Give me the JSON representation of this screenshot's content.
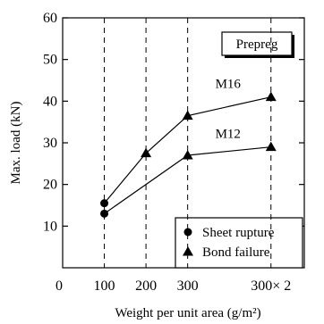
{
  "chart_data": {
    "type": "line",
    "ylabel": "Max. load (kN)",
    "xlabel": "Weight per unit area (g/m²)",
    "ylim": [
      0,
      60
    ],
    "yticks": [
      10,
      20,
      30,
      40,
      50,
      60
    ],
    "xticks": [
      {
        "label": "0",
        "pos": 0
      },
      {
        "label": "100",
        "pos": 1
      },
      {
        "label": "200",
        "pos": 2
      },
      {
        "label": "300",
        "pos": 3
      },
      {
        "label": "300× 2",
        "pos": 5
      }
    ],
    "vgrid": [
      1,
      2,
      3,
      5
    ],
    "grid_style": "dashed vertical lines",
    "box_label": "Prepreg",
    "series": [
      {
        "name": "M16",
        "points": [
          {
            "x": 1,
            "y": 15.5,
            "marker": "circle"
          },
          {
            "x": 2,
            "y": 27.5,
            "marker": "triangle"
          },
          {
            "x": 3,
            "y": 36.5,
            "marker": "triangle"
          },
          {
            "x": 5,
            "y": 41.0,
            "marker": "triangle"
          }
        ]
      },
      {
        "name": "M12",
        "points": [
          {
            "x": 1,
            "y": 13.0,
            "marker": "circle"
          },
          {
            "x": 3,
            "y": 27.0,
            "marker": "triangle"
          },
          {
            "x": 5,
            "y": 29.0,
            "marker": "triangle"
          }
        ]
      }
    ],
    "legend": {
      "placement": "bottom-right",
      "entries": [
        {
          "marker": "circle",
          "label": "Sheet rupture"
        },
        {
          "marker": "triangle",
          "label": "Bond failure"
        }
      ]
    }
  }
}
